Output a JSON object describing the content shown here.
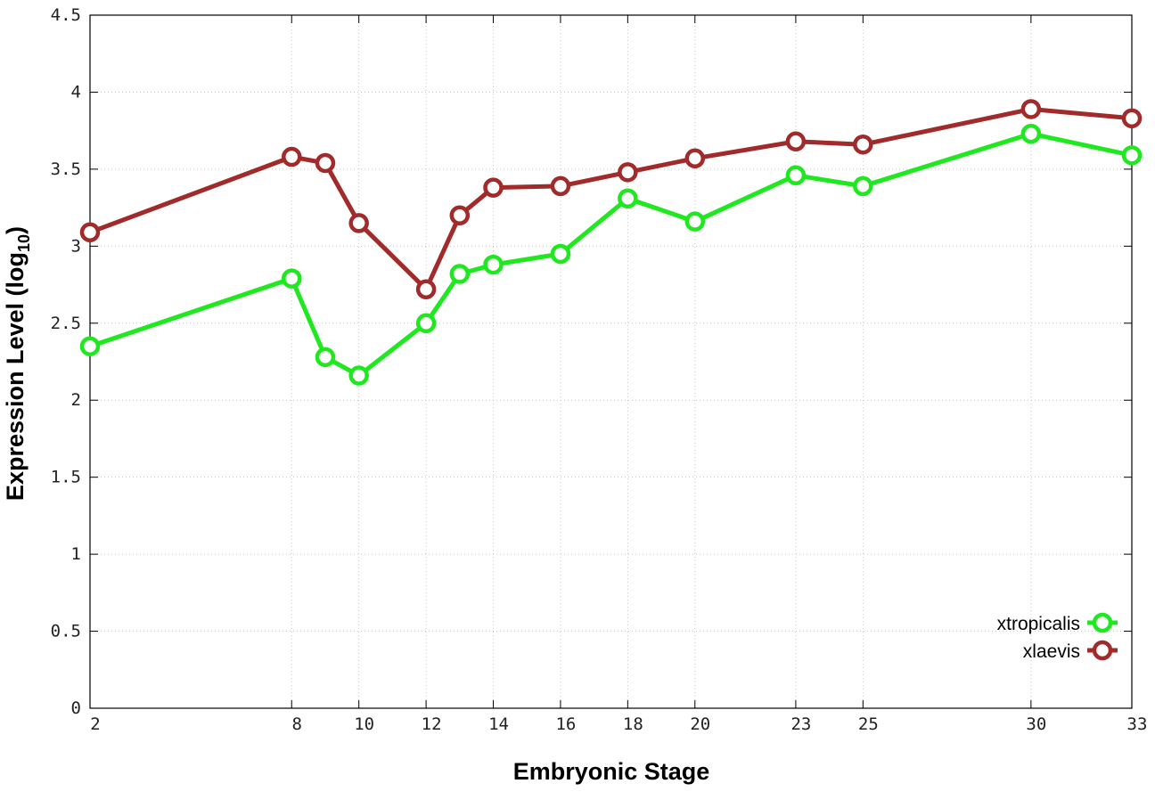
{
  "chart_data": {
    "type": "line",
    "title": "",
    "xlabel": "Embryonic Stage",
    "ylabel_main": "Expression Level (log",
    "ylabel_sub": "10",
    "ylabel_close": ")",
    "xlim": [
      2,
      33
    ],
    "ylim": [
      0,
      4.5
    ],
    "x_ticks": [
      2,
      8,
      10,
      12,
      14,
      16,
      18,
      20,
      23,
      25,
      30,
      33
    ],
    "x_tick_labels": [
      "2",
      "8",
      "10",
      "12",
      "14",
      "16",
      "18",
      "20",
      "23",
      "25",
      "30",
      "33"
    ],
    "y_ticks": [
      0,
      0.5,
      1,
      1.5,
      2,
      2.5,
      3,
      3.5,
      4,
      4.5
    ],
    "y_tick_labels": [
      "0",
      "0.5",
      "1",
      "1.5",
      "2",
      "2.5",
      "3",
      "3.5",
      "4",
      "4.5"
    ],
    "x": [
      2,
      8,
      9,
      10,
      12,
      13,
      14,
      16,
      18,
      20,
      23,
      25,
      30,
      33
    ],
    "grid": true,
    "legend_position": "bottom-right",
    "series": [
      {
        "name": "xtropicalis",
        "color": "#1ee81e",
        "values": [
          2.35,
          2.79,
          2.28,
          2.16,
          2.5,
          2.82,
          2.88,
          2.95,
          3.31,
          3.16,
          3.46,
          3.39,
          3.73,
          3.59
        ]
      },
      {
        "name": "xlaevis",
        "color": "#a12a2a",
        "values": [
          3.09,
          3.58,
          3.54,
          3.15,
          2.72,
          3.2,
          3.38,
          3.39,
          3.48,
          3.57,
          3.68,
          3.66,
          3.89,
          3.83
        ]
      }
    ]
  }
}
